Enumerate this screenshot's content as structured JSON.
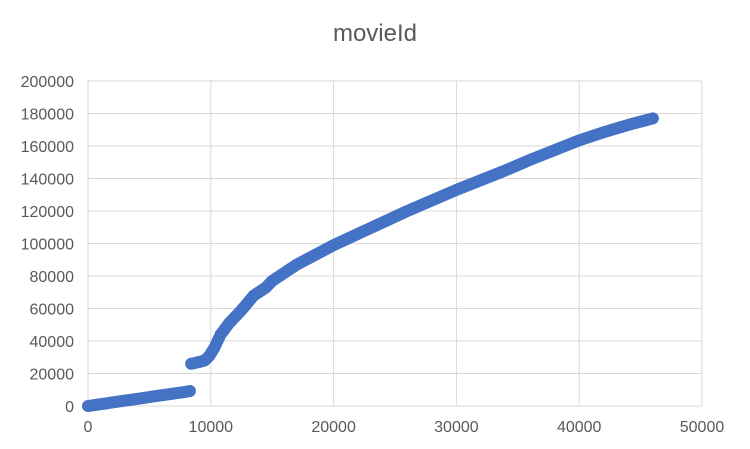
{
  "chart_data": {
    "type": "scatter",
    "title": "movieId",
    "xlabel": "",
    "ylabel": "",
    "xlim": [
      0,
      50000
    ],
    "ylim": [
      0,
      200000
    ],
    "x_ticks": [
      "0",
      "10000",
      "20000",
      "30000",
      "40000",
      "50000"
    ],
    "y_ticks": [
      "0",
      "20000",
      "40000",
      "60000",
      "80000",
      "100000",
      "120000",
      "140000",
      "160000",
      "180000",
      "200000"
    ],
    "grid": true,
    "legend": "none",
    "marker_color": "#4472c4",
    "series": [
      {
        "x": [
          0,
          1000,
          2000,
          3000,
          4000,
          5000,
          6000,
          7000,
          8000,
          8300,
          8400,
          9000,
          9500,
          9900,
          10300,
          10800,
          11500,
          12500,
          13500,
          14500,
          15000,
          16000,
          17000,
          18000,
          19000,
          20000,
          22000,
          24000,
          26000,
          28000,
          30000,
          32000,
          34000,
          36000,
          38000,
          40000,
          42000,
          44000,
          46000
        ],
        "y": [
          0,
          1100,
          2200,
          3300,
          4400,
          5500,
          6600,
          7700,
          8800,
          9200,
          26000,
          27000,
          28000,
          31000,
          36000,
          44000,
          51000,
          59000,
          68000,
          73000,
          77000,
          82000,
          87000,
          91000,
          95000,
          99000,
          106000,
          113000,
          120000,
          126500,
          133000,
          139000,
          145000,
          151500,
          157500,
          163500,
          168500,
          173000,
          177000
        ]
      }
    ]
  }
}
